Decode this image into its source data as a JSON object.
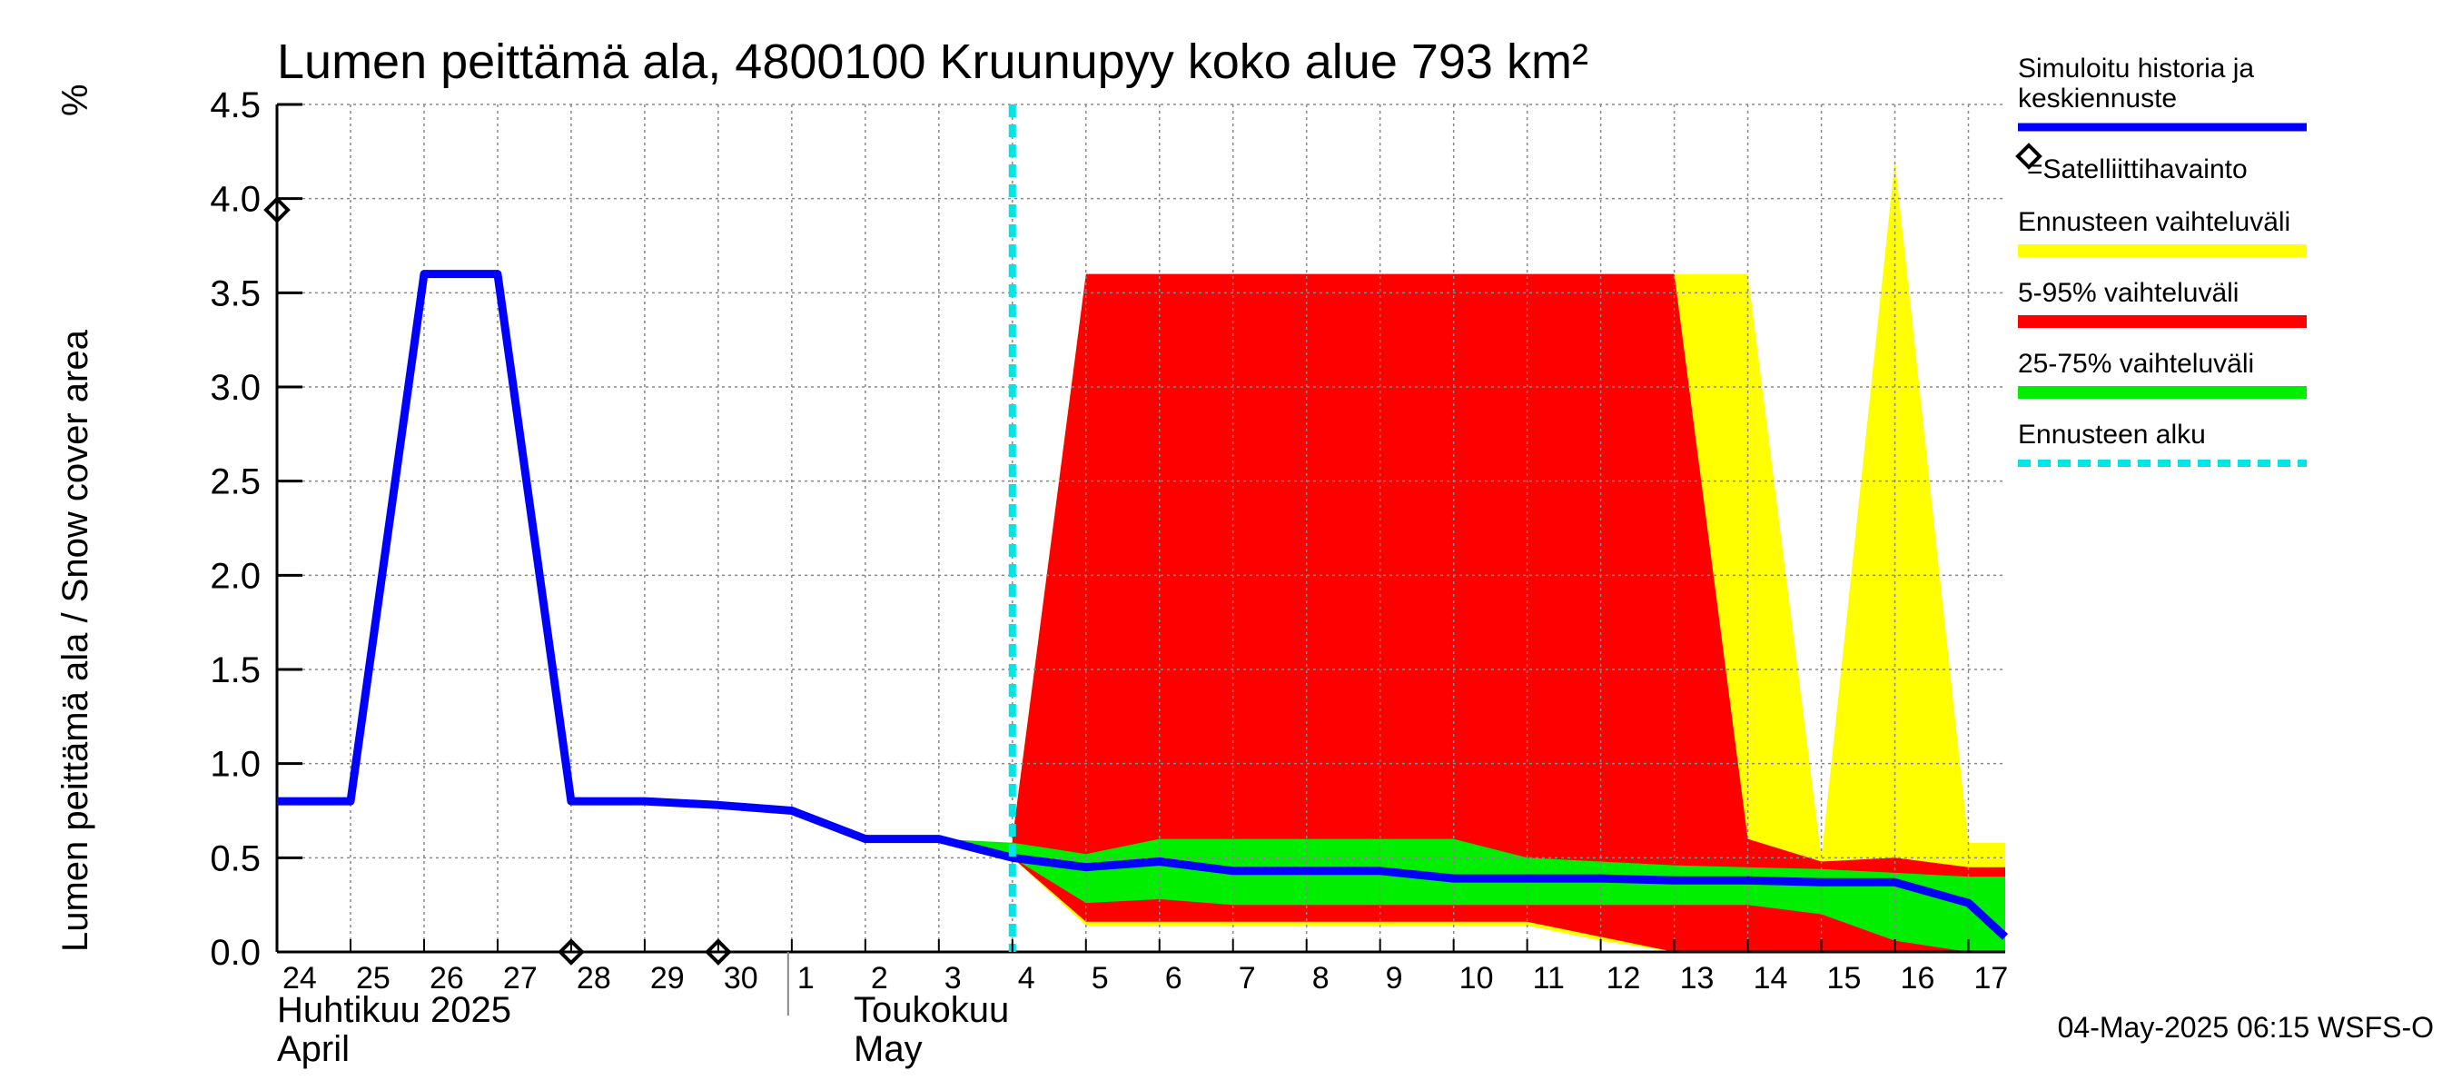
{
  "chart_data": {
    "type": "area",
    "title": "Lumen peittämä ala, 4800100 Kruunupyy koko alue 793 km²",
    "ylabel": "Lumen peittämä ala / Snow cover area",
    "yunit": "%",
    "ylim": [
      0,
      4.5
    ],
    "yticks": [
      "0.0",
      "0.5",
      "1.0",
      "1.5",
      "2.0",
      "2.5",
      "3.0",
      "3.5",
      "4.0",
      "4.5"
    ],
    "xlim": [
      0,
      23.5
    ],
    "day_labels": [
      "24",
      "25",
      "26",
      "27",
      "28",
      "29",
      "30",
      "1",
      "2",
      "3",
      "4",
      "5",
      "6",
      "7",
      "8",
      "9",
      "10",
      "11",
      "12",
      "13",
      "14",
      "15",
      "16",
      "17"
    ],
    "month_labels": [
      {
        "fi": "Huhtikuu  2025",
        "en": "April"
      },
      {
        "fi": "Toukokuu",
        "en": "May"
      }
    ],
    "forecast_start_x": 10,
    "history": {
      "name": "Simuloitu historia ja keskiennuste",
      "x": [
        0,
        1,
        2,
        3,
        4,
        5,
        6,
        7,
        8,
        9,
        10,
        11,
        12,
        13,
        14,
        15,
        16,
        17,
        18,
        19,
        20,
        21,
        22,
        23,
        23.5
      ],
      "y": [
        0.8,
        0.8,
        3.6,
        3.6,
        0.8,
        0.8,
        0.78,
        0.75,
        0.6,
        0.6,
        0.5,
        0.45,
        0.48,
        0.43,
        0.43,
        0.43,
        0.39,
        0.39,
        0.39,
        0.38,
        0.38,
        0.37,
        0.37,
        0.26,
        0.08
      ]
    },
    "band_outer": {
      "name": "Ennusteen vaihteluväli",
      "x": [
        10,
        11,
        12,
        13,
        14,
        15,
        16,
        17,
        18,
        19,
        20,
        21,
        22,
        23,
        23.5
      ],
      "upper": [
        0.6,
        3.6,
        3.6,
        3.6,
        3.6,
        3.6,
        3.6,
        3.6,
        3.6,
        3.6,
        3.6,
        0.5,
        4.2,
        0.58,
        0.58
      ],
      "lower": [
        0.5,
        0.14,
        0.14,
        0.14,
        0.14,
        0.14,
        0.14,
        0.14,
        0.06,
        0.0,
        0.0,
        0.0,
        0.0,
        0.0,
        0.0
      ]
    },
    "band_5_95": {
      "name": "5-95% vaihteluväli",
      "x": [
        10,
        11,
        12,
        13,
        14,
        15,
        16,
        17,
        18,
        19,
        20,
        21,
        22,
        23,
        23.5
      ],
      "upper": [
        0.6,
        3.6,
        3.6,
        3.6,
        3.6,
        3.6,
        3.6,
        3.6,
        3.6,
        3.6,
        0.6,
        0.48,
        0.5,
        0.45,
        0.45
      ],
      "lower": [
        0.5,
        0.16,
        0.16,
        0.16,
        0.16,
        0.16,
        0.16,
        0.16,
        0.08,
        0.0,
        0.0,
        0.0,
        0.0,
        0.0,
        0.0
      ]
    },
    "band_25_75": {
      "name": "25-75% vaihteluväli",
      "x": [
        9,
        10,
        11,
        12,
        13,
        14,
        15,
        16,
        17,
        18,
        19,
        20,
        21,
        22,
        23,
        23.5
      ],
      "upper": [
        0.6,
        0.58,
        0.52,
        0.6,
        0.6,
        0.6,
        0.6,
        0.6,
        0.5,
        0.48,
        0.46,
        0.45,
        0.44,
        0.42,
        0.4,
        0.4
      ],
      "lower": [
        0.6,
        0.5,
        0.26,
        0.28,
        0.25,
        0.25,
        0.25,
        0.25,
        0.25,
        0.25,
        0.25,
        0.25,
        0.2,
        0.06,
        0.0,
        0.0
      ]
    },
    "satellite": {
      "name": "=Satelliittihavainto",
      "points": [
        {
          "x": 0,
          "y": 3.94
        },
        {
          "x": 4,
          "y": 0.0
        },
        {
          "x": 6,
          "y": 0.0
        }
      ]
    },
    "legend": {
      "history_line1": "Simuloitu historia ja",
      "history_line2": "keskiennuste",
      "satellite": "=Satelliittihavainto",
      "outer": "Ennusteen vaihteluväli",
      "p5_95": "5-95% vaihteluväli",
      "p25_75": "25-75% vaihteluväli",
      "forecast_start": "Ennusteen alku"
    },
    "colors": {
      "history": "#0000ff",
      "outer": "#ffff00",
      "p5_95": "#ff0000",
      "p25_75": "#00ee00",
      "forecast_start": "#00e5e5",
      "grid": "#999999"
    },
    "timestamp": "04-May-2025 06:15 WSFS-O"
  }
}
